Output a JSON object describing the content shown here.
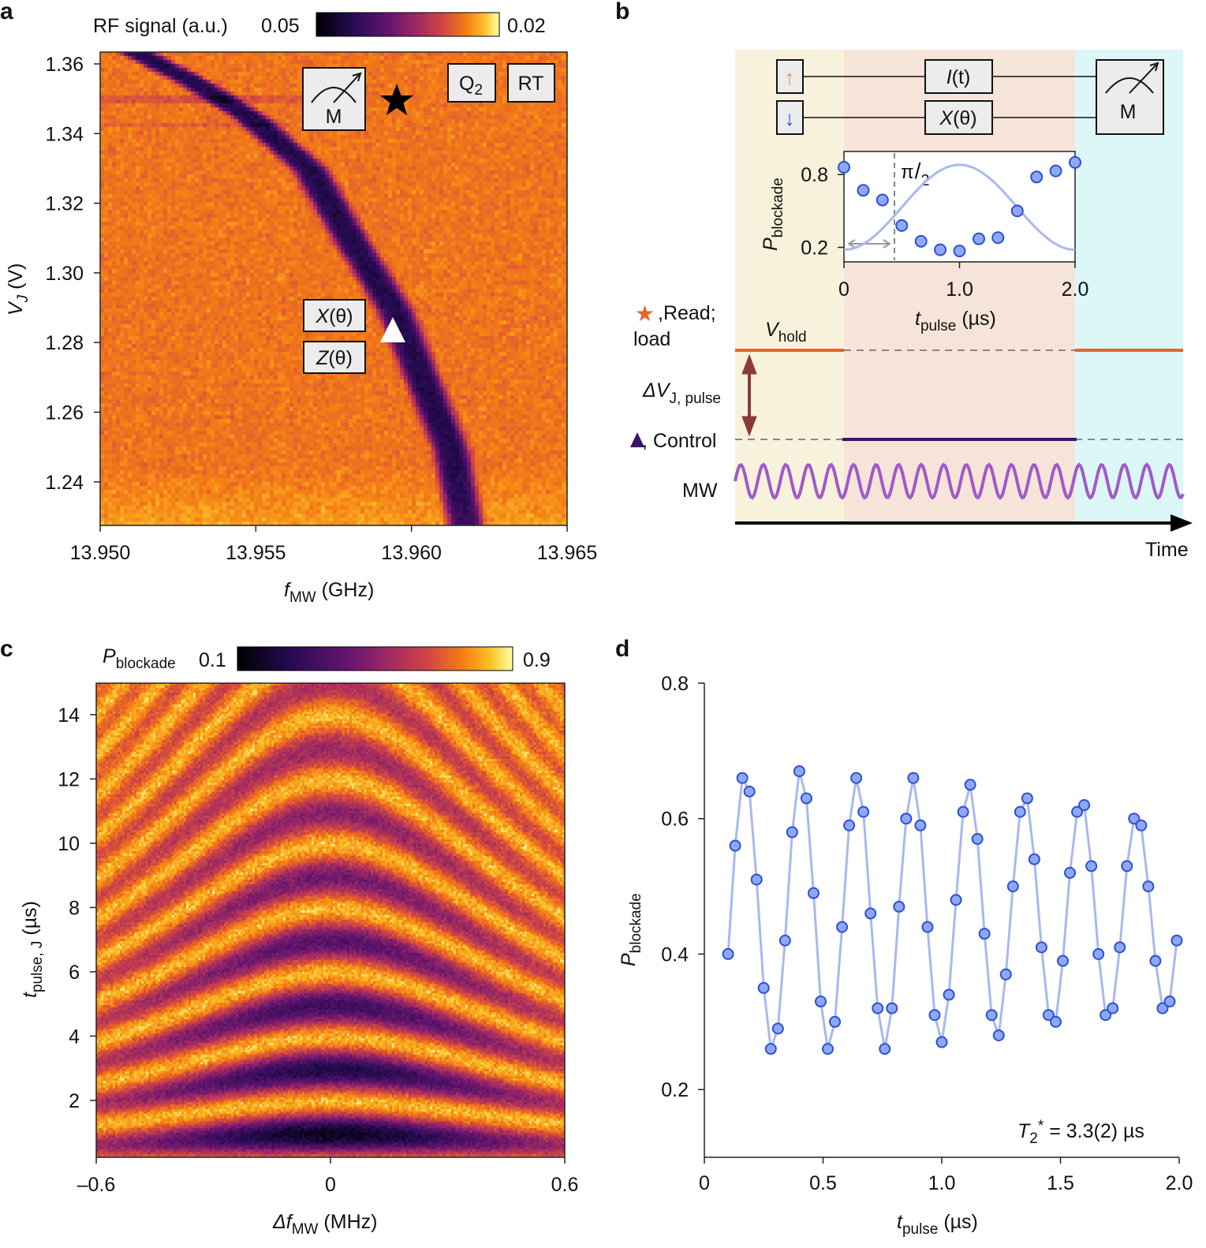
{
  "panel_letters": {
    "a": "a",
    "b": "b",
    "c": "c",
    "d": "d"
  },
  "chart_data": [
    {
      "panel": "a",
      "type": "heatmap",
      "colorbar": {
        "label": "RF signal (a.u.)",
        "min_label": "0.05",
        "max_label": "0.02",
        "colormap": "inferno"
      },
      "xlabel": {
        "main": "f",
        "sub": "MW",
        "unit": " (GHz)"
      },
      "ylabel": {
        "main": "V",
        "sub": "J",
        "unit": " (V)"
      },
      "xlim": [
        13.95,
        13.965
      ],
      "ylim": [
        1.2275,
        1.3634
      ],
      "xticks": [
        "13.950",
        "13.955",
        "13.960",
        "13.965"
      ],
      "yticks": [
        "1.24",
        "1.26",
        "1.28",
        "1.30",
        "1.32",
        "1.34",
        "1.36"
      ],
      "resonance_line": {
        "f_GHz": [
          13.9512,
          13.953,
          13.9548,
          13.9567,
          13.958,
          13.9594,
          13.9603,
          13.9612,
          13.9617
        ],
        "VJ_V": [
          1.3634,
          1.355,
          1.345,
          1.33,
          1.31,
          1.29,
          1.27,
          1.25,
          1.2275
        ]
      },
      "annotations": {
        "measure_box": "M",
        "q2_box": {
          "main": "Q",
          "sub": "2"
        },
        "rt_box": "RT",
        "x_gate": {
          "main": "X",
          "arg": "(θ)"
        },
        "z_gate": {
          "main": "Z",
          "arg": "(θ)"
        },
        "star_marker": {
          "f_GHz": 13.9594,
          "VJ_V": 1.349
        },
        "triangle_marker": {
          "f_GHz": 13.9593,
          "VJ_V": 1.283
        }
      }
    },
    {
      "panel": "b",
      "type": "line",
      "circuit": {
        "spin_up": "↑",
        "spin_down": "↓",
        "gate_top": {
          "main": "I",
          "arg": "(t)"
        },
        "gate_bottom": {
          "main": "X",
          "arg": "(θ)"
        },
        "measure": "M"
      },
      "inset": {
        "xlabel": {
          "main": "t",
          "sub": "pulse",
          "unit": " (µs)"
        },
        "ylabel": {
          "main": "P",
          "sub": "blockade"
        },
        "xticks": [
          "0",
          "1.0",
          "2.0"
        ],
        "yticks": [
          "0.8",
          "0.2"
        ],
        "xlim": [
          0,
          2.0
        ],
        "ylim": [
          0.08,
          0.99
        ],
        "pi_half": {
          "num": "π",
          "den": "2",
          "t_us": 0.44
        },
        "x": [
          0,
          0.167,
          0.333,
          0.5,
          0.667,
          0.833,
          1.0,
          1.167,
          1.333,
          1.5,
          1.667,
          1.833,
          2.0
        ],
        "y": [
          0.86,
          0.67,
          0.59,
          0.38,
          0.25,
          0.18,
          0.17,
          0.27,
          0.28,
          0.5,
          0.78,
          0.83,
          0.9
        ]
      },
      "pulse": {
        "read_label": ",Read;",
        "load_label": "load",
        "vhold": {
          "main": "V",
          "sub": "hold"
        },
        "delta_v": {
          "main": "ΔV",
          "sub": "J, pulse"
        },
        "control_label": ", Control",
        "mw_label": "MW",
        "time_label": "Time"
      },
      "colors": {
        "read": "#e8622c",
        "control": "#3b1466",
        "mw": "#a259c9",
        "load_bg": "#f8f2dc",
        "pulse_bg": "#f6e4d9",
        "read_bg": "#dcf7f8",
        "point": "#8ea8f5",
        "point_edge": "#2d4fd6"
      }
    },
    {
      "panel": "c",
      "type": "heatmap",
      "colorbar": {
        "label": {
          "main": "P",
          "sub": "blockade"
        },
        "min_label": "0.1",
        "max_label": "0.9",
        "colormap": "inferno"
      },
      "xlabel": {
        "main": "Δf",
        "sub": "MW",
        "unit": " (MHz)"
      },
      "ylabel": {
        "main": "t",
        "sub": "pulse, J",
        "unit": " (µs)"
      },
      "xlim": [
        -0.6,
        0.6
      ],
      "ylim": [
        0.23,
        14.98
      ],
      "xticks": [
        "–0.6",
        "0",
        "0.6"
      ],
      "yticks": [
        "2",
        "4",
        "6",
        "8",
        "10",
        "12",
        "14"
      ]
    },
    {
      "panel": "d",
      "type": "scatter",
      "xlabel": {
        "main": "t",
        "sub": "pulse",
        "unit": " (µs)"
      },
      "ylabel": {
        "main": "P",
        "sub": "blockade"
      },
      "xlim": [
        0,
        2.0
      ],
      "ylim": [
        0.1,
        0.8
      ],
      "xticks": [
        "0",
        "0.5",
        "1.0",
        "1.5",
        "2.0"
      ],
      "yticks": [
        "0.2",
        "0.4",
        "0.6",
        "0.8"
      ],
      "annotation": {
        "main": "T",
        "sub": "2",
        "sup": "*",
        "rest": " = 3.3(2) µs"
      },
      "x": [
        0.1,
        0.13,
        0.16,
        0.19,
        0.22,
        0.25,
        0.28,
        0.31,
        0.34,
        0.37,
        0.4,
        0.43,
        0.46,
        0.49,
        0.52,
        0.55,
        0.58,
        0.61,
        0.64,
        0.67,
        0.7,
        0.73,
        0.76,
        0.79,
        0.82,
        0.85,
        0.88,
        0.91,
        0.94,
        0.97,
        1.0,
        1.03,
        1.06,
        1.09,
        1.12,
        1.15,
        1.18,
        1.21,
        1.24,
        1.27,
        1.3,
        1.33,
        1.36,
        1.39,
        1.42,
        1.45,
        1.48,
        1.51,
        1.54,
        1.57,
        1.6,
        1.63,
        1.66,
        1.69,
        1.72,
        1.75,
        1.78,
        1.81,
        1.84,
        1.87,
        1.9,
        1.93,
        1.96,
        1.99
      ],
      "y": [
        0.4,
        0.56,
        0.66,
        0.64,
        0.51,
        0.35,
        0.26,
        0.29,
        0.42,
        0.58,
        0.67,
        0.63,
        0.49,
        0.33,
        0.26,
        0.3,
        0.44,
        0.59,
        0.66,
        0.61,
        0.46,
        0.32,
        0.26,
        0.32,
        0.47,
        0.6,
        0.66,
        0.59,
        0.44,
        0.31,
        0.27,
        0.34,
        0.48,
        0.61,
        0.65,
        0.57,
        0.43,
        0.31,
        0.28,
        0.37,
        0.5,
        0.61,
        0.63,
        0.54,
        0.41,
        0.31,
        0.3,
        0.39,
        0.52,
        0.61,
        0.62,
        0.53,
        0.4,
        0.31,
        0.32,
        0.41,
        0.53,
        0.6,
        0.59,
        0.5,
        0.39,
        0.32,
        0.33,
        0.42
      ]
    }
  ]
}
